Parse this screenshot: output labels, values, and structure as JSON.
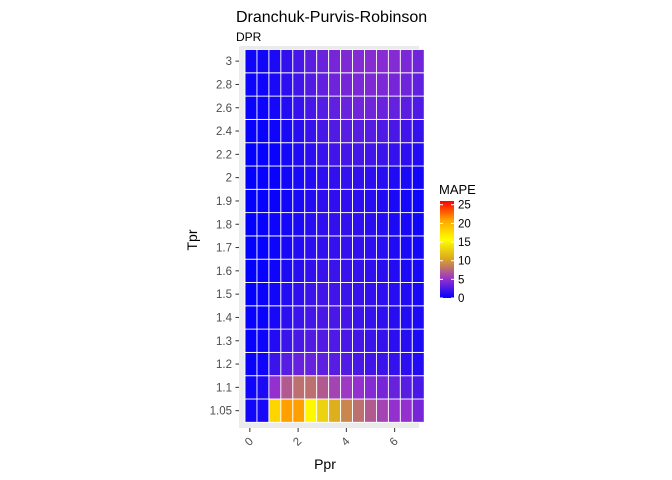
{
  "chart_data": {
    "type": "heatmap",
    "title": "Dranchuk-Purvis-Robinson",
    "subtitle": "DPR",
    "xlabel": "Ppr",
    "ylabel": "Tpr",
    "x_tick_labels": [
      "0",
      "2",
      "4",
      "6"
    ],
    "x_ticks": [
      0,
      2,
      4,
      6
    ],
    "x_categories": [
      0.2,
      0.5,
      1.0,
      1.5,
      2.0,
      2.5,
      3.0,
      3.5,
      4.0,
      4.5,
      5.0,
      5.5,
      6.0,
      6.5,
      7.0
    ],
    "y_categories": [
      "1.05",
      "1.1",
      "1.2",
      "1.3",
      "1.4",
      "1.5",
      "1.6",
      "1.7",
      "1.8",
      "1.9",
      "2",
      "2.2",
      "2.4",
      "2.6",
      "2.8",
      "3"
    ],
    "values": [
      [
        0.6,
        0.8,
        18,
        21,
        21,
        16,
        13,
        11,
        9,
        8,
        7,
        6,
        5,
        5,
        4
      ],
      [
        0.5,
        1,
        5,
        7,
        8,
        8,
        7,
        6,
        5.5,
        5,
        4.5,
        4,
        3.5,
        3,
        2.5
      ],
      [
        0.3,
        0.5,
        2,
        3,
        3.5,
        3.5,
        3.2,
        3,
        2.8,
        2.5,
        2.2,
        2,
        1.8,
        1.5,
        1.2
      ],
      [
        0.2,
        0.4,
        1.2,
        2,
        2.5,
        2.8,
        2.8,
        2.7,
        2.5,
        2.3,
        2,
        1.8,
        1.5,
        1.3,
        1
      ],
      [
        0.2,
        0.3,
        0.8,
        1.5,
        2,
        2.3,
        2.5,
        2.5,
        2.3,
        2,
        1.8,
        1.6,
        1.4,
        1.2,
        1
      ],
      [
        0.1,
        0.3,
        0.6,
        1.2,
        1.6,
        2,
        2.2,
        2.2,
        2,
        1.9,
        1.7,
        1.5,
        1.3,
        1.1,
        0.9
      ],
      [
        0.1,
        0.2,
        0.5,
        1,
        1.4,
        1.7,
        1.9,
        2,
        1.9,
        1.8,
        1.6,
        1.4,
        1.2,
        1,
        0.8
      ],
      [
        0.1,
        0.2,
        0.4,
        0.8,
        1.2,
        1.5,
        1.7,
        1.8,
        1.8,
        1.7,
        1.5,
        1.3,
        1.1,
        0.9,
        0.7
      ],
      [
        0.1,
        0.2,
        0.4,
        0.7,
        1,
        1.3,
        1.6,
        1.7,
        1.7,
        1.6,
        1.4,
        1.2,
        1,
        0.8,
        0.6
      ],
      [
        0.1,
        0.2,
        0.3,
        0.6,
        0.9,
        1.2,
        1.5,
        1.6,
        1.6,
        1.5,
        1.3,
        1.1,
        0.9,
        0.7,
        0.5
      ],
      [
        0.1,
        0.2,
        0.3,
        0.6,
        0.9,
        1.2,
        1.5,
        1.7,
        1.8,
        1.7,
        1.5,
        1.3,
        1.1,
        0.9,
        0.6
      ],
      [
        0.1,
        0.2,
        0.3,
        0.7,
        1.1,
        1.5,
        1.9,
        2.2,
        2.3,
        2.3,
        2.2,
        2,
        1.8,
        1.5,
        1.2
      ],
      [
        0.2,
        0.3,
        0.5,
        0.9,
        1.4,
        1.9,
        2.4,
        2.8,
        3,
        3,
        2.9,
        2.7,
        2.5,
        2.2,
        1.8
      ],
      [
        0.3,
        0.4,
        0.7,
        1.2,
        1.8,
        2.4,
        2.9,
        3.3,
        3.6,
        3.8,
        3.8,
        3.6,
        3.4,
        3.1,
        2.7
      ],
      [
        0.4,
        0.5,
        0.9,
        1.5,
        2.2,
        2.8,
        3.3,
        3.7,
        4,
        4.2,
        4.3,
        4.2,
        4,
        3.7,
        3.3
      ],
      [
        0.5,
        0.6,
        1,
        1.7,
        2.4,
        3.1,
        3.6,
        4,
        4.3,
        4.5,
        4.6,
        4.6,
        4.5,
        4.2,
        3.8
      ]
    ],
    "legend": {
      "title": "MAPE",
      "ticks": [
        0,
        5,
        10,
        15,
        20,
        25
      ],
      "range": [
        0,
        26
      ],
      "colors": [
        "#0000ff",
        "#9932cc",
        "#daa520",
        "#ffff00",
        "#ffa500",
        "#ff0000"
      ],
      "placement": "right"
    },
    "grid": true,
    "panel_background": "#ebebeb",
    "tile_border": "#ffffff"
  }
}
